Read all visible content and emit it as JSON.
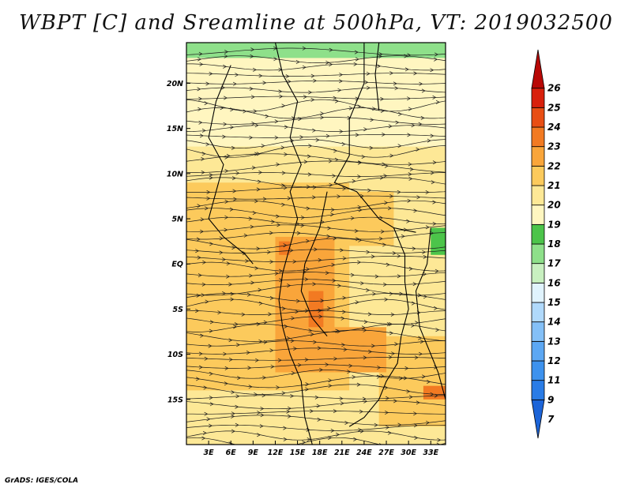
{
  "chart_data": {
    "type": "heatmap",
    "title": "WBPT [C] and Sreamline at 500hPa, VT: 2019032500",
    "credit": "GrADS: IGES/COLA",
    "field": "wet bulb potential temperature",
    "overlay": "streamlines",
    "xlim": [
      0,
      35
    ],
    "ylim": [
      -20,
      24.5
    ],
    "x_ticks": [
      {
        "value": 3,
        "label": "3E"
      },
      {
        "value": 6,
        "label": "6E"
      },
      {
        "value": 9,
        "label": "9E"
      },
      {
        "value": 12,
        "label": "12E"
      },
      {
        "value": 15,
        "label": "15E"
      },
      {
        "value": 18,
        "label": "18E"
      },
      {
        "value": 21,
        "label": "21E"
      },
      {
        "value": 24,
        "label": "24E"
      },
      {
        "value": 27,
        "label": "27E"
      },
      {
        "value": 30,
        "label": "30E"
      },
      {
        "value": 33,
        "label": "33E"
      }
    ],
    "y_ticks": [
      {
        "value": 20,
        "label": "20N"
      },
      {
        "value": 15,
        "label": "15N"
      },
      {
        "value": 10,
        "label": "10N"
      },
      {
        "value": 5,
        "label": "5N"
      },
      {
        "value": 0,
        "label": "EQ"
      },
      {
        "value": -5,
        "label": "5S"
      },
      {
        "value": -10,
        "label": "10S"
      },
      {
        "value": -15,
        "label": "15S"
      }
    ],
    "colorbar": {
      "labels": [
        "7",
        "9",
        "11",
        "12",
        "13",
        "14",
        "15",
        "16",
        "17",
        "18",
        "19",
        "20",
        "21",
        "22",
        "23",
        "24",
        "25",
        "26"
      ],
      "colors": [
        "#1c64d8",
        "#2a7ce6",
        "#3d92ee",
        "#5ca7f3",
        "#84c0f7",
        "#b0d9fb",
        "#e0f3fd",
        "#c8f0c0",
        "#8ee08a",
        "#4cc44a",
        "#fff6c0",
        "#fde896",
        "#fcca5c",
        "#f9a53a",
        "#f27a22",
        "#e84e14",
        "#d8200c",
        "#b80806"
      ]
    },
    "regions": [
      {
        "lon": [
          0,
          35
        ],
        "lat": [
          22.8,
          24.5
        ],
        "value": 17
      },
      {
        "lon": [
          4,
          24
        ],
        "lat": [
          21.5,
          22.8
        ],
        "value": 18
      },
      {
        "lon": [
          0,
          35
        ],
        "lat": [
          13,
          22.8
        ],
        "value": 19
      },
      {
        "lon": [
          0,
          35
        ],
        "lat": [
          -20,
          13
        ],
        "value": 20
      },
      {
        "lon": [
          0,
          22
        ],
        "lat": [
          -14,
          9
        ],
        "value": 21
      },
      {
        "lon": [
          20,
          28
        ],
        "lat": [
          2,
          8
        ],
        "value": 21
      },
      {
        "lon": [
          26,
          35
        ],
        "lat": [
          -18,
          -8
        ],
        "value": 21
      },
      {
        "lon": [
          12,
          20
        ],
        "lat": [
          -12,
          3
        ],
        "value": 22
      },
      {
        "lon": [
          20,
          27
        ],
        "lat": [
          -12,
          -7
        ],
        "value": 22
      },
      {
        "lon": [
          12.5,
          14
        ],
        "lat": [
          1,
          2.5
        ],
        "value": 23
      },
      {
        "lon": [
          16.5,
          18.5
        ],
        "lat": [
          -7,
          -3
        ],
        "value": 23
      },
      {
        "lon": [
          32,
          35
        ],
        "lat": [
          -15,
          -13.5
        ],
        "value": 23
      },
      {
        "lon": [
          33,
          35
        ],
        "lat": [
          1,
          4
        ],
        "value": 18
      }
    ]
  }
}
